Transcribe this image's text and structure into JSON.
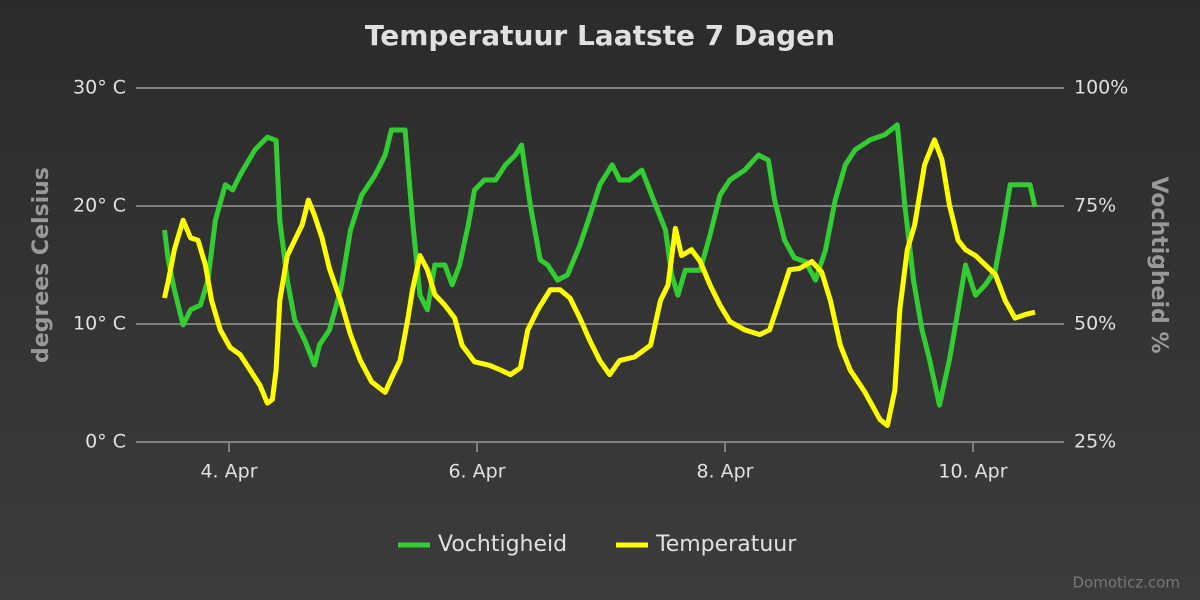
{
  "chart_data": {
    "type": "line",
    "title": "Temperatuur Laatste 7 Dagen",
    "ylabel": "degrees Celsius",
    "y2label": "Vochtigheid %",
    "watermark": "Domoticz.com",
    "xlim": [
      3.25,
      10.734
    ],
    "xticks": [
      {
        "value": 4,
        "label": "4. Apr"
      },
      {
        "value": 6,
        "label": "6. Apr"
      },
      {
        "value": 8,
        "label": "8. Apr"
      },
      {
        "value": 10,
        "label": "10. Apr"
      }
    ],
    "ylim": [
      0,
      30
    ],
    "yticks": [
      {
        "value": 0,
        "label": "0° C"
      },
      {
        "value": 10,
        "label": "10° C"
      },
      {
        "value": 20,
        "label": "20° C"
      },
      {
        "value": 30,
        "label": "30° C"
      }
    ],
    "y2lim": [
      25,
      100
    ],
    "y2ticks": [
      {
        "value": 25,
        "label": "25%"
      },
      {
        "value": 50,
        "label": "50%"
      },
      {
        "value": 75,
        "label": "75%"
      },
      {
        "value": 100,
        "label": "100%"
      }
    ],
    "grid": true,
    "legend": "bottom",
    "series": [
      {
        "name": "Vochtigheid",
        "color": "#33cc33",
        "axis": "y2",
        "x": [
          3.48,
          3.51,
          3.56,
          3.63,
          3.69,
          3.77,
          3.83,
          3.89,
          3.97,
          4.03,
          4.09,
          4.21,
          4.31,
          4.38,
          4.41,
          4.47,
          4.53,
          4.61,
          4.69,
          4.73,
          4.81,
          4.9,
          4.98,
          5.07,
          5.18,
          5.26,
          5.31,
          5.42,
          5.48,
          5.54,
          5.6,
          5.66,
          5.74,
          5.8,
          5.86,
          5.93,
          5.98,
          6.06,
          6.15,
          6.23,
          6.31,
          6.36,
          6.43,
          6.51,
          6.57,
          6.65,
          6.73,
          6.83,
          6.91,
          6.99,
          7.09,
          7.15,
          7.23,
          7.33,
          7.44,
          7.52,
          7.57,
          7.62,
          7.68,
          7.8,
          7.88,
          7.96,
          8.04,
          8.16,
          8.27,
          8.35,
          8.4,
          8.48,
          8.56,
          8.65,
          8.73,
          8.81,
          8.89,
          8.97,
          9.05,
          9.17,
          9.29,
          9.39,
          9.45,
          9.52,
          9.59,
          9.65,
          9.73,
          9.81,
          9.88,
          9.94,
          10.02,
          10.1,
          10.18,
          10.24,
          10.3,
          10.38,
          10.46,
          10.5
        ],
        "values": [
          69.9,
          63.6,
          57.2,
          49.8,
          53.0,
          54.0,
          59.3,
          72.0,
          79.5,
          78.4,
          81.6,
          86.9,
          89.6,
          88.9,
          72.0,
          59.3,
          50.9,
          46.6,
          41.3,
          45.6,
          48.7,
          57.2,
          69.9,
          77.3,
          81.6,
          85.8,
          91.1,
          91.1,
          72.0,
          56.1,
          53.0,
          62.5,
          62.5,
          58.3,
          62.5,
          71.0,
          78.4,
          80.5,
          80.5,
          83.7,
          85.8,
          87.9,
          75.2,
          63.6,
          62.5,
          59.3,
          60.4,
          66.7,
          72.9,
          79.5,
          83.7,
          80.5,
          80.5,
          82.6,
          75.2,
          69.9,
          60.4,
          56.1,
          61.4,
          61.4,
          68.9,
          77.3,
          80.5,
          82.6,
          85.8,
          84.7,
          76.3,
          67.8,
          64.0,
          63.2,
          59.3,
          65.6,
          76.3,
          83.7,
          86.9,
          89.0,
          90.1,
          92.2,
          75.2,
          59.3,
          48.7,
          42.4,
          32.8,
          42.4,
          53.0,
          62.5,
          56.1,
          58.3,
          61.4,
          69.9,
          79.5,
          79.5,
          79.5,
          74.8
        ]
      },
      {
        "name": "Temperatuur",
        "color": "#ffff00",
        "x": [
          3.48,
          3.51,
          3.56,
          3.63,
          3.69,
          3.75,
          3.81,
          3.86,
          3.93,
          4.01,
          4.09,
          4.17,
          4.25,
          4.31,
          4.35,
          4.38,
          4.41,
          4.47,
          4.53,
          4.59,
          4.64,
          4.69,
          4.75,
          4.81,
          4.9,
          4.98,
          5.06,
          5.15,
          5.26,
          5.31,
          5.38,
          5.44,
          5.48,
          5.54,
          5.6,
          5.66,
          5.74,
          5.82,
          5.88,
          5.98,
          6.1,
          6.19,
          6.27,
          6.35,
          6.41,
          6.49,
          6.59,
          6.67,
          6.75,
          6.83,
          6.91,
          6.99,
          7.07,
          7.15,
          7.27,
          7.4,
          7.48,
          7.54,
          7.6,
          7.65,
          7.73,
          7.8,
          7.88,
          7.96,
          8.04,
          8.16,
          8.28,
          8.36,
          8.44,
          8.52,
          8.6,
          8.7,
          8.78,
          8.85,
          8.93,
          9.01,
          9.13,
          9.25,
          9.31,
          9.37,
          9.41,
          9.47,
          9.53,
          9.61,
          9.69,
          9.75,
          9.81,
          9.88,
          9.94,
          10.02,
          10.1,
          10.18,
          10.26,
          10.34,
          10.42,
          10.5
        ],
        "values": [
          12.2,
          13.6,
          16.3,
          18.8,
          17.3,
          17.1,
          15.0,
          12.0,
          9.5,
          8.0,
          7.4,
          6.1,
          4.8,
          3.3,
          3.6,
          6.1,
          12.0,
          15.8,
          17.1,
          18.4,
          20.5,
          19.2,
          17.3,
          14.7,
          12.0,
          9.1,
          6.9,
          5.1,
          4.2,
          5.4,
          6.9,
          10.3,
          12.9,
          15.8,
          14.6,
          12.5,
          11.6,
          10.5,
          8.2,
          6.8,
          6.5,
          6.1,
          5.7,
          6.3,
          9.5,
          11.2,
          12.9,
          12.9,
          12.2,
          10.5,
          8.6,
          6.9,
          5.7,
          6.9,
          7.2,
          8.2,
          12.0,
          13.3,
          18.1,
          15.8,
          16.3,
          15.3,
          13.3,
          11.6,
          10.2,
          9.5,
          9.1,
          9.5,
          12.0,
          14.6,
          14.7,
          15.3,
          14.4,
          12.0,
          8.2,
          6.1,
          4.2,
          1.9,
          1.4,
          4.4,
          11.2,
          16.3,
          18.4,
          23.5,
          25.6,
          23.9,
          20.1,
          17.1,
          16.3,
          15.8,
          15.0,
          14.2,
          12.0,
          10.5,
          10.8,
          11.0
        ]
      }
    ]
  }
}
